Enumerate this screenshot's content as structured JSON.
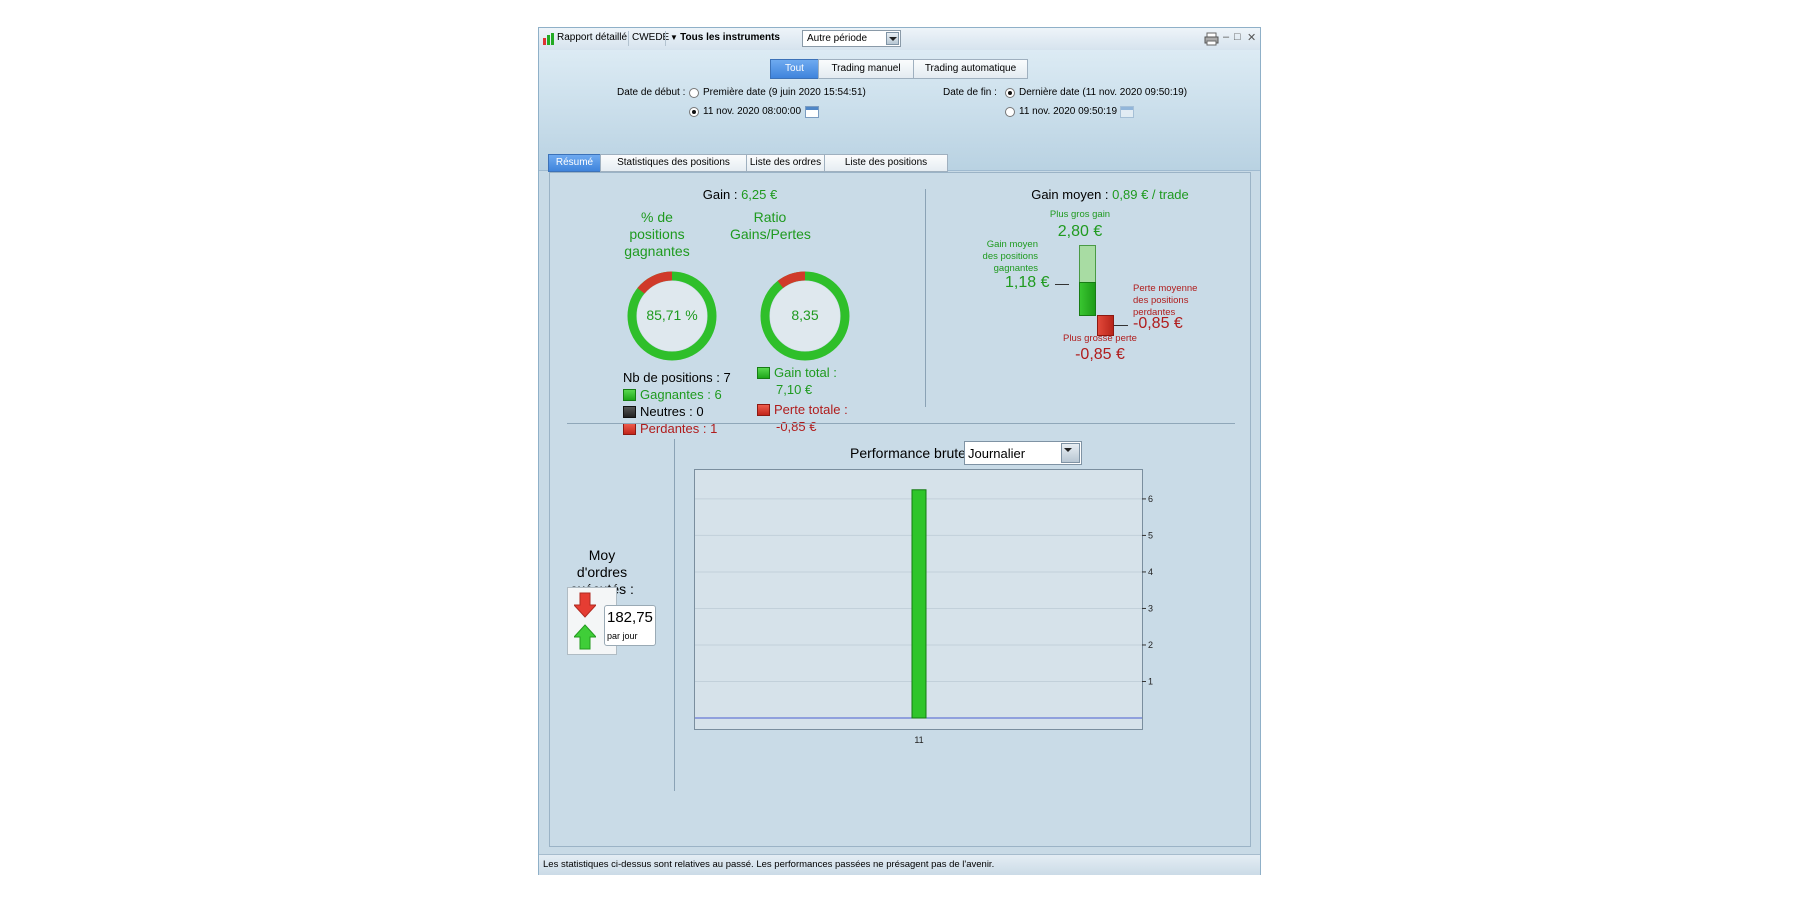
{
  "toolbar": {
    "report_label": "Rapport détaillé",
    "account": "CWEDE",
    "instruments": "Tous les instruments",
    "period_value": "Autre période"
  },
  "header": {
    "segments": [
      "Tout",
      "Trading manuel",
      "Trading automatique"
    ],
    "start_label": "Date de début :",
    "start_option1": "Première date (9 juin 2020 15:54:51)",
    "start_option2": "11 nov. 2020 08:00:00",
    "end_label": "Date de fin :",
    "end_option1": "Dernière date (11 nov. 2020 09:50:19)",
    "end_option2": "11 nov. 2020 09:50:19"
  },
  "tabs": [
    "Résumé",
    "Statistiques des positions clôturées",
    "Liste des ordres",
    "Liste des positions clôturées"
  ],
  "summary": {
    "gain_label": "Gain :",
    "gain_value": "6,25 €",
    "win_pct_title": "% de positions gagnantes",
    "win_pct_value": "85,71 %",
    "win_fraction": 0.8571,
    "ratio_title": "Ratio Gains/Pertes",
    "ratio_value": "8,35",
    "ratio_fraction": 0.893,
    "nb_positions": "Nb de positions : 7",
    "winners": "Gagnantes : 6",
    "neutral": "Neutres : 0",
    "losers": "Perdantes : 1",
    "gain_total_label": "Gain total :",
    "gain_total_value": "7,10 €",
    "perte_totale_label": "Perte totale :",
    "perte_totale_value": "-0,85 €",
    "avg_gain_label": "Gain moyen :",
    "avg_gain_value": "0,89 € / trade",
    "biggest_gain_label": "Plus gros gain",
    "biggest_gain_value": "2,80 €",
    "avg_win_label": "Gain moyen des positions gagnantes",
    "avg_win_value": "1,18 €",
    "avg_loss_label": "Perte moyenne des positions perdantes",
    "avg_loss_value": "-0,85 €",
    "biggest_loss_label": "Plus grosse perte",
    "biggest_loss_value": "-0,85 €"
  },
  "orders": {
    "title": "Moy d'ordres exécutés :",
    "value": "182,75",
    "unit": "par jour"
  },
  "perf": {
    "label": "Performance brute",
    "select_value": "Journalier"
  },
  "chart_data": {
    "type": "bar",
    "categories": [
      "11"
    ],
    "values": [
      6.25
    ],
    "ylim": [
      0,
      6.6
    ],
    "yticks": [
      1,
      2,
      3,
      4,
      5,
      6
    ],
    "grid": true
  },
  "status": "Les statistiques ci-dessus sont relatives au passé. Les performances passées ne présagent pas de l'avenir.",
  "colors": {
    "gain": "#1f9a1f",
    "loss": "#b01c1c",
    "accent": "#3f84dc"
  }
}
